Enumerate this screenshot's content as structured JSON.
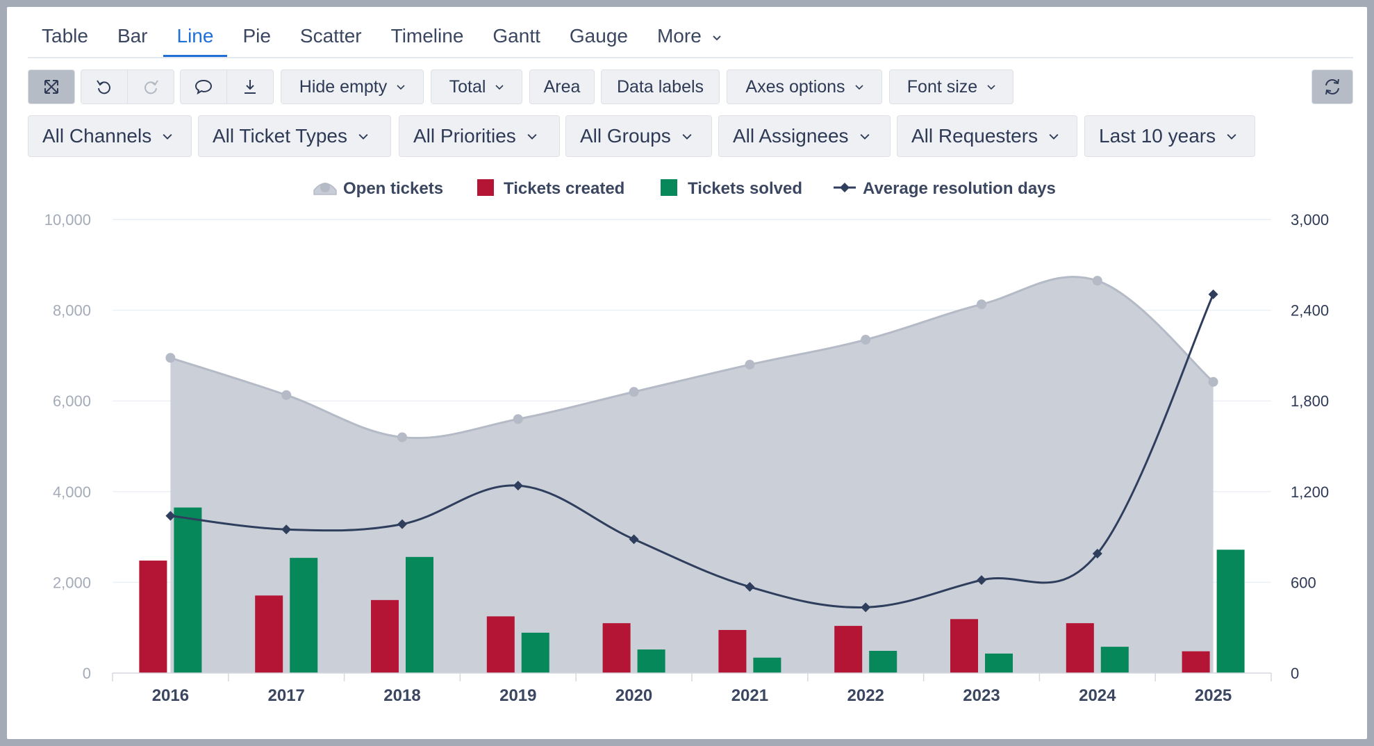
{
  "tabs": [
    {
      "label": "Table",
      "active": false
    },
    {
      "label": "Bar",
      "active": false
    },
    {
      "label": "Line",
      "active": true
    },
    {
      "label": "Pie",
      "active": false
    },
    {
      "label": "Scatter",
      "active": false
    },
    {
      "label": "Timeline",
      "active": false
    },
    {
      "label": "Gantt",
      "active": false
    },
    {
      "label": "Gauge",
      "active": false
    },
    {
      "label": "More",
      "active": false
    }
  ],
  "toolbar": {
    "fullscreen_icon": "expand-arrows-icon",
    "undo_icon": "undo-icon",
    "redo_icon": "redo-icon",
    "comment_icon": "comment-icon",
    "download_icon": "download-icon",
    "hide_empty": "Hide empty",
    "total": "Total",
    "area": "Area",
    "data_labels": "Data labels",
    "axes_options": "Axes options",
    "font_size": "Font size",
    "refresh_icon": "refresh-icon"
  },
  "filters": {
    "channels": "All Channels",
    "ticket_types": "All Ticket Types",
    "priorities": "All Priorities",
    "groups": "All Groups",
    "assignees": "All Assignees",
    "requesters": "All Requesters",
    "period": "Last 10 years"
  },
  "colors": {
    "open_area": "#c7ccd6",
    "open_line": "#b4bac6",
    "created": "#b41534",
    "solved": "#07885a",
    "resolution": "#2e3e5c",
    "active_tab": "#1f6fd6"
  },
  "chart_data": {
    "type": "bar",
    "categories": [
      "2016",
      "2017",
      "2018",
      "2019",
      "2020",
      "2021",
      "2022",
      "2023",
      "2024",
      "2025"
    ],
    "series": [
      {
        "name": "Open tickets",
        "type": "area",
        "axis": "left",
        "values": [
          6950,
          6130,
          5200,
          5600,
          6200,
          6800,
          7350,
          8130,
          8650,
          6420
        ]
      },
      {
        "name": "Tickets created",
        "type": "bar",
        "axis": "left",
        "values": [
          2480,
          1710,
          1610,
          1250,
          1100,
          950,
          1040,
          1190,
          1100,
          480
        ]
      },
      {
        "name": "Tickets solved",
        "type": "bar",
        "axis": "left",
        "values": [
          3650,
          2540,
          2560,
          890,
          520,
          340,
          490,
          430,
          580,
          2720
        ]
      },
      {
        "name": "Average resolution days",
        "type": "line",
        "axis": "right",
        "values": [
          1040,
          950,
          985,
          1240,
          885,
          570,
          435,
          615,
          790,
          2505
        ]
      }
    ],
    "y_ticks": [
      "0",
      "2,000",
      "4,000",
      "6,000",
      "8,000",
      "10,000"
    ],
    "y2_ticks": [
      "0",
      "600",
      "1,200",
      "1,800",
      "2,400",
      "3,000"
    ],
    "ylim": [
      0,
      10000
    ],
    "y2lim": [
      0,
      3000
    ],
    "grid": true,
    "legend_position": "top-center"
  }
}
